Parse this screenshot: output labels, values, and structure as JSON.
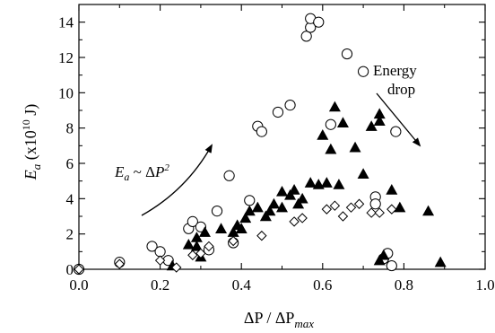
{
  "chart_data": {
    "type": "scatter",
    "title": "",
    "xlabel": "ΔP / ΔP",
    "xlabel_sub": "max",
    "ylabel": "E",
    "ylabel_sub": "a",
    "ylabel_unit": " (x10",
    "ylabel_exp": "10",
    "ylabel_tail": " J)",
    "xlim": [
      0.0,
      1.0
    ],
    "ylim": [
      0,
      15
    ],
    "xticks": [
      "0.0",
      "0.2",
      "0.4",
      "0.6",
      "0.8",
      "1.0"
    ],
    "yticks": [
      "0",
      "2",
      "4",
      "6",
      "8",
      "10",
      "12",
      "14"
    ],
    "grid": false,
    "legend": "none",
    "series": [
      {
        "marker": "circle-open",
        "points": [
          [
            0.0,
            0.0
          ],
          [
            0.1,
            0.4
          ],
          [
            0.18,
            1.3
          ],
          [
            0.2,
            1.0
          ],
          [
            0.22,
            0.5
          ],
          [
            0.27,
            2.3
          ],
          [
            0.28,
            2.7
          ],
          [
            0.3,
            2.4
          ],
          [
            0.32,
            1.1
          ],
          [
            0.34,
            3.3
          ],
          [
            0.37,
            5.3
          ],
          [
            0.38,
            1.5
          ],
          [
            0.42,
            3.9
          ],
          [
            0.44,
            8.1
          ],
          [
            0.45,
            7.8
          ],
          [
            0.49,
            8.9
          ],
          [
            0.52,
            9.3
          ],
          [
            0.56,
            13.2
          ],
          [
            0.57,
            13.7
          ],
          [
            0.57,
            14.2
          ],
          [
            0.59,
            14.0
          ],
          [
            0.62,
            8.2
          ],
          [
            0.66,
            12.2
          ],
          [
            0.7,
            11.2
          ],
          [
            0.73,
            4.1
          ],
          [
            0.73,
            3.7
          ],
          [
            0.75,
            0.6
          ],
          [
            0.76,
            0.9
          ],
          [
            0.77,
            0.2
          ],
          [
            0.78,
            7.8
          ]
        ]
      },
      {
        "marker": "triangle-filled",
        "points": [
          [
            0.23,
            0.2
          ],
          [
            0.27,
            1.4
          ],
          [
            0.29,
            1.3
          ],
          [
            0.29,
            1.8
          ],
          [
            0.3,
            0.7
          ],
          [
            0.31,
            2.1
          ],
          [
            0.35,
            2.3
          ],
          [
            0.38,
            2.1
          ],
          [
            0.39,
            2.5
          ],
          [
            0.4,
            2.3
          ],
          [
            0.41,
            2.9
          ],
          [
            0.42,
            3.3
          ],
          [
            0.44,
            3.5
          ],
          [
            0.46,
            3.0
          ],
          [
            0.47,
            3.3
          ],
          [
            0.48,
            3.7
          ],
          [
            0.5,
            3.5
          ],
          [
            0.5,
            4.4
          ],
          [
            0.52,
            4.2
          ],
          [
            0.53,
            4.5
          ],
          [
            0.54,
            3.7
          ],
          [
            0.55,
            4.0
          ],
          [
            0.57,
            4.9
          ],
          [
            0.59,
            4.8
          ],
          [
            0.6,
            7.6
          ],
          [
            0.61,
            4.9
          ],
          [
            0.62,
            6.8
          ],
          [
            0.63,
            9.2
          ],
          [
            0.64,
            4.8
          ],
          [
            0.65,
            8.3
          ],
          [
            0.68,
            6.9
          ],
          [
            0.7,
            5.4
          ],
          [
            0.72,
            8.1
          ],
          [
            0.74,
            8.4
          ],
          [
            0.74,
            8.8
          ],
          [
            0.74,
            0.5
          ],
          [
            0.75,
            0.8
          ],
          [
            0.77,
            4.5
          ],
          [
            0.79,
            3.5
          ],
          [
            0.86,
            3.3
          ],
          [
            0.89,
            0.4
          ]
        ]
      },
      {
        "marker": "diamond-open",
        "points": [
          [
            0.0,
            0.0
          ],
          [
            0.1,
            0.3
          ],
          [
            0.2,
            0.5
          ],
          [
            0.24,
            0.1
          ],
          [
            0.28,
            0.8
          ],
          [
            0.3,
            0.9
          ],
          [
            0.32,
            1.3
          ],
          [
            0.38,
            1.6
          ],
          [
            0.45,
            1.9
          ],
          [
            0.53,
            2.7
          ],
          [
            0.55,
            2.9
          ],
          [
            0.61,
            3.4
          ],
          [
            0.63,
            3.6
          ],
          [
            0.65,
            3.0
          ],
          [
            0.67,
            3.5
          ],
          [
            0.69,
            3.7
          ],
          [
            0.72,
            3.2
          ],
          [
            0.74,
            3.2
          ],
          [
            0.77,
            3.4
          ]
        ]
      }
    ],
    "annotations": {
      "relation_main": "E",
      "relation_sub": "a",
      "relation_mid": " ~ Δ",
      "relation_var": "P",
      "relation_exp": "2",
      "energy_line1": "Energy",
      "energy_line2": "drop"
    }
  }
}
